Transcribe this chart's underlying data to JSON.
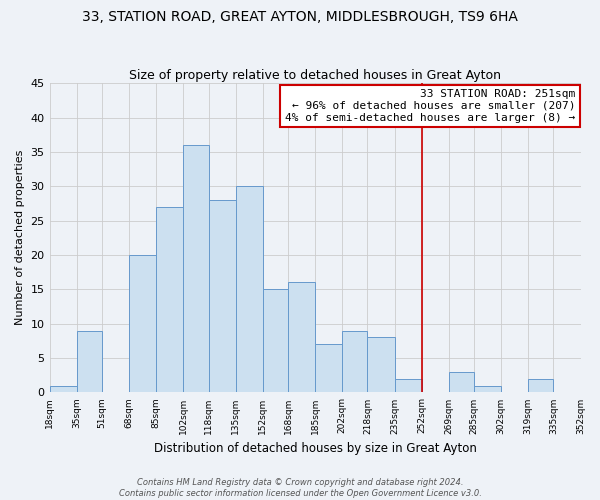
{
  "title": "33, STATION ROAD, GREAT AYTON, MIDDLESBROUGH, TS9 6HA",
  "subtitle": "Size of property relative to detached houses in Great Ayton",
  "xlabel": "Distribution of detached houses by size in Great Ayton",
  "ylabel": "Number of detached properties",
  "bin_edges": [
    18,
    35,
    51,
    68,
    85,
    102,
    118,
    135,
    152,
    168,
    185,
    202,
    218,
    235,
    252,
    269,
    285,
    302,
    319,
    335,
    352
  ],
  "bin_heights": [
    1,
    9,
    0,
    20,
    27,
    36,
    28,
    30,
    15,
    16,
    7,
    9,
    8,
    2,
    0,
    3,
    1,
    0,
    2,
    0
  ],
  "bar_color": "#cce0f0",
  "bar_edge_color": "#6699cc",
  "vline_x": 252,
  "vline_color": "#cc0000",
  "annotation_title": "33 STATION ROAD: 251sqm",
  "annotation_line1": "← 96% of detached houses are smaller (207)",
  "annotation_line2": "4% of semi-detached houses are larger (8) →",
  "annotation_box_color": "#ffffff",
  "annotation_border_color": "#cc0000",
  "ylim": [
    0,
    45
  ],
  "yticks": [
    0,
    5,
    10,
    15,
    20,
    25,
    30,
    35,
    40,
    45
  ],
  "tick_labels": [
    "18sqm",
    "35sqm",
    "51sqm",
    "68sqm",
    "85sqm",
    "102sqm",
    "118sqm",
    "135sqm",
    "152sqm",
    "168sqm",
    "185sqm",
    "202sqm",
    "218sqm",
    "235sqm",
    "252sqm",
    "269sqm",
    "285sqm",
    "302sqm",
    "319sqm",
    "335sqm",
    "352sqm"
  ],
  "footnote1": "Contains HM Land Registry data © Crown copyright and database right 2024.",
  "footnote2": "Contains public sector information licensed under the Open Government Licence v3.0.",
  "grid_color": "#cccccc",
  "background_color": "#eef2f7",
  "plot_bg_color": "#eef2f7",
  "title_fontsize": 10,
  "subtitle_fontsize": 9
}
